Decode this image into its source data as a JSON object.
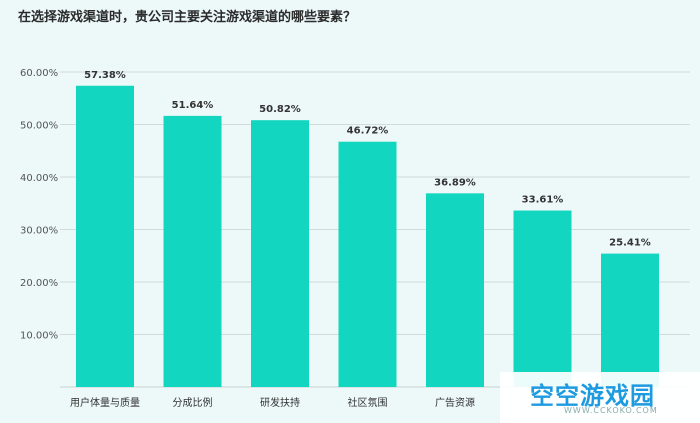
{
  "chart_data": {
    "type": "bar",
    "title": "在选择游戏渠道时，贵公司主要关注游戏渠道的哪些要素？",
    "categories": [
      "用户体量与质量",
      "分成比例",
      "研发扶持",
      "社区氛围",
      "广告资源",
      "",
      ""
    ],
    "values": [
      57.38,
      51.64,
      50.82,
      46.72,
      36.89,
      33.61,
      25.41
    ],
    "value_labels": [
      "57.38%",
      "51.64%",
      "50.82%",
      "46.72%",
      "36.89%",
      "33.61%",
      "25.41%"
    ],
    "yticks": [
      "10.00%",
      "20.00%",
      "30.00%",
      "40.00%",
      "50.00%",
      "60.00%"
    ],
    "ylim": [
      0,
      60
    ],
    "grid": true,
    "bar_color": "#12d6c0"
  },
  "watermark": {
    "text": "空空游戏园",
    "url": "WWW.CCKOKO.COM"
  }
}
